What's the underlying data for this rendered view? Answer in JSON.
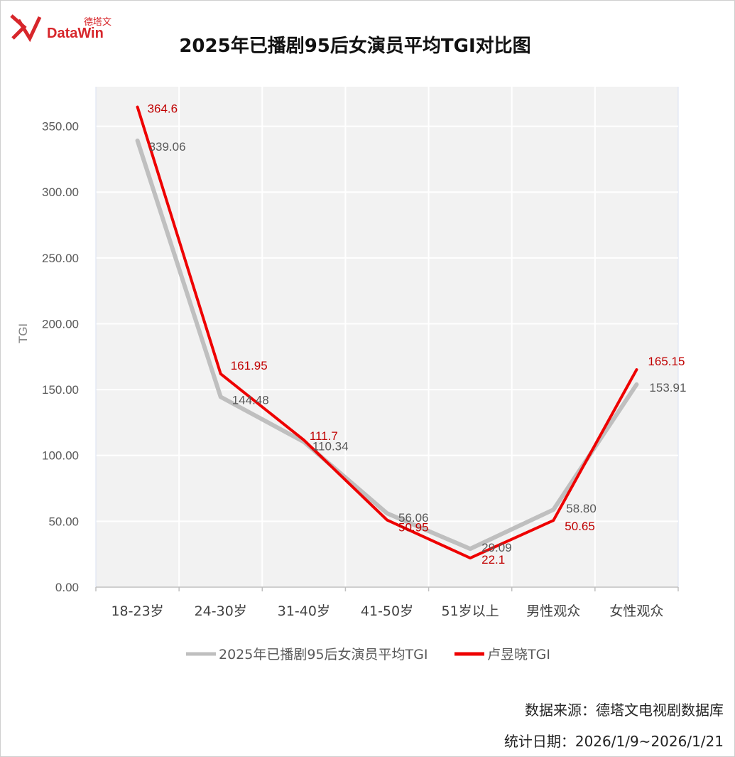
{
  "brand": {
    "name_cn": "德塔文",
    "name_en": "DataWin"
  },
  "source_text": "数据来源：德塔文电视剧数据库",
  "date_text": "统计日期：2026/1/9~2026/1/21",
  "chart_data": {
    "type": "line",
    "title": "2025年已播剧95后女演员平均TGI对比图",
    "xlabel": "",
    "ylabel": "TGI",
    "categories": [
      "18-23岁",
      "24-30岁",
      "31-40岁",
      "41-50岁",
      "51岁以上",
      "男性观众",
      "女性观众"
    ],
    "yticks": [
      "0.00",
      "50.00",
      "100.00",
      "150.00",
      "200.00",
      "250.00",
      "300.00",
      "350.00"
    ],
    "ylim": [
      0,
      380
    ],
    "grid": true,
    "legend": "bottom",
    "series": [
      {
        "name": "2025年已播剧95后女演员平均TGI",
        "color": "#bfbfbf",
        "values": [
          339.06,
          144.48,
          110.34,
          56.06,
          29.09,
          58.8,
          153.91
        ],
        "labels": [
          "339.06",
          "144.48",
          "110.34",
          "56.06",
          "29.09",
          "58.80",
          "153.91"
        ],
        "label_color": "#595959"
      },
      {
        "name": "卢昱晓TGI",
        "color": "#ee0000",
        "values": [
          364.6,
          161.95,
          111.7,
          50.95,
          22.1,
          50.65,
          165.15
        ],
        "labels": [
          "364.6",
          "161.95",
          "111.7",
          "50.95",
          "22.1",
          "50.65",
          "165.15"
        ],
        "label_color": "#c00000"
      }
    ]
  }
}
